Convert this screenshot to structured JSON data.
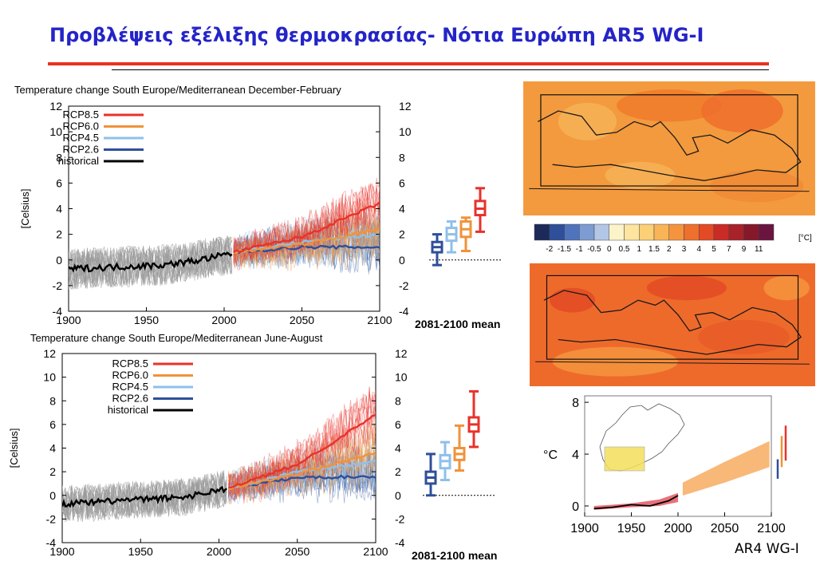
{
  "slide_title": "Προβλέψεις εξέλιξης θερμοκρασίας- Νότια Ευρώπη AR5 WG-I",
  "footer_label": "AR4 WG-I",
  "colors": {
    "title": "#2424c8",
    "rule": "#e8321e",
    "rcp85": "#e8322a",
    "rcp60": "#f0923a",
    "rcp45": "#8ec0ea",
    "rcp26": "#2f4f9a",
    "historical": "#000000"
  },
  "chart_data": [
    {
      "type": "line",
      "title": "Temperature change South Europe/Mediterranean December-February",
      "ylabel": "[Celsius]",
      "xlim": [
        1900,
        2100
      ],
      "ylim": [
        -4,
        12
      ],
      "x_ticks": [
        1900,
        1950,
        2000,
        2050,
        2100
      ],
      "y_ticks": [
        -4,
        -2,
        0,
        2,
        4,
        6,
        8,
        10,
        12
      ],
      "legend": [
        "RCP8.5",
        "RCP6.0",
        "RCP4.5",
        "RCP2.6",
        "historical"
      ],
      "legend_position": "top-left",
      "boxes_label": "2081-2100 mean",
      "series": [
        {
          "name": "historical",
          "x": [
            1900,
            1920,
            1940,
            1960,
            1980,
            2005
          ],
          "values": [
            -0.7,
            -0.6,
            -0.5,
            -0.4,
            -0.1,
            0.5
          ]
        },
        {
          "name": "RCP2.6",
          "x": [
            2006,
            2050,
            2100
          ],
          "values": [
            0.6,
            1.0,
            1.0
          ]
        },
        {
          "name": "RCP4.5",
          "x": [
            2006,
            2050,
            2100
          ],
          "values": [
            0.6,
            1.4,
            2.0
          ]
        },
        {
          "name": "RCP6.0",
          "x": [
            2006,
            2050,
            2100
          ],
          "values": [
            0.6,
            1.2,
            2.4
          ]
        },
        {
          "name": "RCP8.5",
          "x": [
            2006,
            2050,
            2100
          ],
          "values": [
            0.6,
            1.8,
            4.4
          ]
        }
      ],
      "box_stats": [
        {
          "name": "RCP2.6",
          "min": -0.4,
          "q1": 0.6,
          "median": 1.0,
          "q3": 1.4,
          "max": 2.0
        },
        {
          "name": "RCP4.5",
          "min": 0.6,
          "q1": 1.5,
          "median": 2.0,
          "q3": 2.5,
          "max": 3.0
        },
        {
          "name": "RCP6.0",
          "min": 0.7,
          "q1": 1.8,
          "median": 2.4,
          "q3": 3.0,
          "max": 3.3
        },
        {
          "name": "RCP8.5",
          "min": 2.2,
          "q1": 3.5,
          "median": 4.0,
          "q3": 4.6,
          "max": 5.6
        }
      ]
    },
    {
      "type": "line",
      "title": "Temperature change South Europe/Mediterranean June-August",
      "ylabel": "[Celsius]",
      "xlim": [
        1900,
        2100
      ],
      "ylim": [
        -4,
        12
      ],
      "x_ticks": [
        1900,
        1950,
        2000,
        2050,
        2100
      ],
      "y_ticks": [
        -4,
        -2,
        0,
        2,
        4,
        6,
        8,
        10,
        12
      ],
      "legend": [
        "RCP8.5",
        "RCP6.0",
        "RCP4.5",
        "RCP2.6",
        "historical"
      ],
      "legend_position": "top-left",
      "boxes_label": "2081-2100 mean",
      "series": [
        {
          "name": "historical",
          "x": [
            1900,
            1920,
            1940,
            1960,
            1980,
            2005
          ],
          "values": [
            -0.7,
            -0.6,
            -0.4,
            -0.3,
            -0.1,
            0.6
          ]
        },
        {
          "name": "RCP2.6",
          "x": [
            2006,
            2050,
            2100
          ],
          "values": [
            0.6,
            1.5,
            1.6
          ]
        },
        {
          "name": "RCP4.5",
          "x": [
            2006,
            2050,
            2100
          ],
          "values": [
            0.6,
            2.0,
            2.9
          ]
        },
        {
          "name": "RCP6.0",
          "x": [
            2006,
            2050,
            2100
          ],
          "values": [
            0.6,
            1.8,
            3.6
          ]
        },
        {
          "name": "RCP8.5",
          "x": [
            2006,
            2050,
            2100
          ],
          "values": [
            0.6,
            2.6,
            6.8
          ]
        }
      ],
      "box_stats": [
        {
          "name": "RCP2.6",
          "min": 0.0,
          "q1": 1.0,
          "median": 1.5,
          "q3": 2.0,
          "max": 3.5
        },
        {
          "name": "RCP4.5",
          "min": 1.3,
          "q1": 2.3,
          "median": 2.9,
          "q3": 3.4,
          "max": 4.5
        },
        {
          "name": "RCP6.0",
          "min": 2.1,
          "q1": 3.0,
          "median": 3.5,
          "q3": 4.0,
          "max": 5.9
        },
        {
          "name": "RCP8.5",
          "min": 4.1,
          "q1": 5.4,
          "median": 6.0,
          "q3": 6.6,
          "max": 8.8
        }
      ]
    },
    {
      "type": "heatmap",
      "colorbar_ticks": [
        "-2",
        "-1.5",
        "-1",
        "-0.5",
        "0",
        "0.5",
        "1",
        "1.5",
        "2",
        "3",
        "4",
        "5",
        "7",
        "9",
        "11"
      ],
      "colorbar_unit": "[°C]",
      "colorbar_colors": [
        "#1c2a5a",
        "#2f4f9a",
        "#4f74bc",
        "#7d9cd2",
        "#b3c6e6",
        "#fdf3c8",
        "#fde5a0",
        "#fcd076",
        "#f9b458",
        "#f5943e",
        "#ef6f2d",
        "#e34a25",
        "#c92c26",
        "#a8222a",
        "#85192a",
        "#6a1540"
      ]
    },
    {
      "type": "area",
      "ylabel": "°C",
      "xlim": [
        1900,
        2100
      ],
      "ylim": [
        -0.8,
        8.5
      ],
      "x_ticks": [
        1900,
        1950,
        2000,
        2050,
        2100
      ],
      "y_ticks": [
        0,
        4,
        8
      ],
      "series": [
        {
          "name": "observed",
          "x": [
            1910,
            1930,
            1950,
            1970,
            1990,
            2000
          ],
          "values": [
            -0.2,
            -0.1,
            0.1,
            0.0,
            0.4,
            0.8
          ]
        },
        {
          "name": "model historical",
          "x": [
            1910,
            1950,
            1980,
            2000
          ],
          "lower": [
            -0.3,
            -0.1,
            0.0,
            0.3
          ],
          "upper": [
            0.0,
            0.2,
            0.5,
            1.0
          ]
        },
        {
          "name": "projection",
          "x": [
            2005,
            2050,
            2098
          ],
          "lower": [
            0.8,
            1.8,
            3.0
          ],
          "upper": [
            1.8,
            3.4,
            5.0
          ]
        }
      ],
      "bars": [
        {
          "color": "#2f4f9a",
          "min": 2.1,
          "max": 3.6
        },
        {
          "color": "#f0923a",
          "min": 3.0,
          "max": 5.4
        },
        {
          "color": "#e8322a",
          "min": 3.5,
          "max": 6.2
        }
      ]
    }
  ]
}
